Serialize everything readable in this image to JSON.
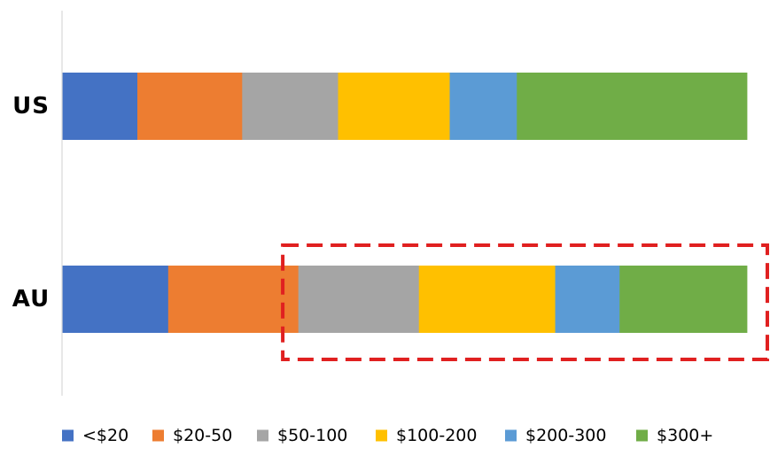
{
  "chart_data": {
    "type": "bar",
    "orientation": "horizontal",
    "stacked": true,
    "percent_stacked": true,
    "title": "",
    "categories": [
      "US",
      "AU"
    ],
    "series": [
      {
        "name": "<$20",
        "color": "#4472C4",
        "values": [
          11,
          15.5
        ]
      },
      {
        "name": "$20-50",
        "color": "#ED7D31",
        "values": [
          15.3,
          19
        ]
      },
      {
        "name": "$50-100",
        "color": "#A5A5A5",
        "values": [
          14,
          17.6
        ]
      },
      {
        "name": "$100-200",
        "color": "#FFC000",
        "values": [
          16.3,
          19.9
        ]
      },
      {
        "name": "$200-300",
        "color": "#5B9BD5",
        "values": [
          9.8,
          9.4
        ]
      },
      {
        "name": "$300+",
        "color": "#70AD47",
        "values": [
          33.6,
          18.6
        ]
      }
    ],
    "xlim": [
      0,
      100
    ],
    "legend_position": "bottom",
    "grid": false,
    "annotation": {
      "type": "dashed-rectangle",
      "color": "#E02020",
      "target": "AU",
      "spans_series": [
        "$20-50",
        "$50-100",
        "$100-200",
        "$200-300",
        "$300+"
      ]
    }
  }
}
